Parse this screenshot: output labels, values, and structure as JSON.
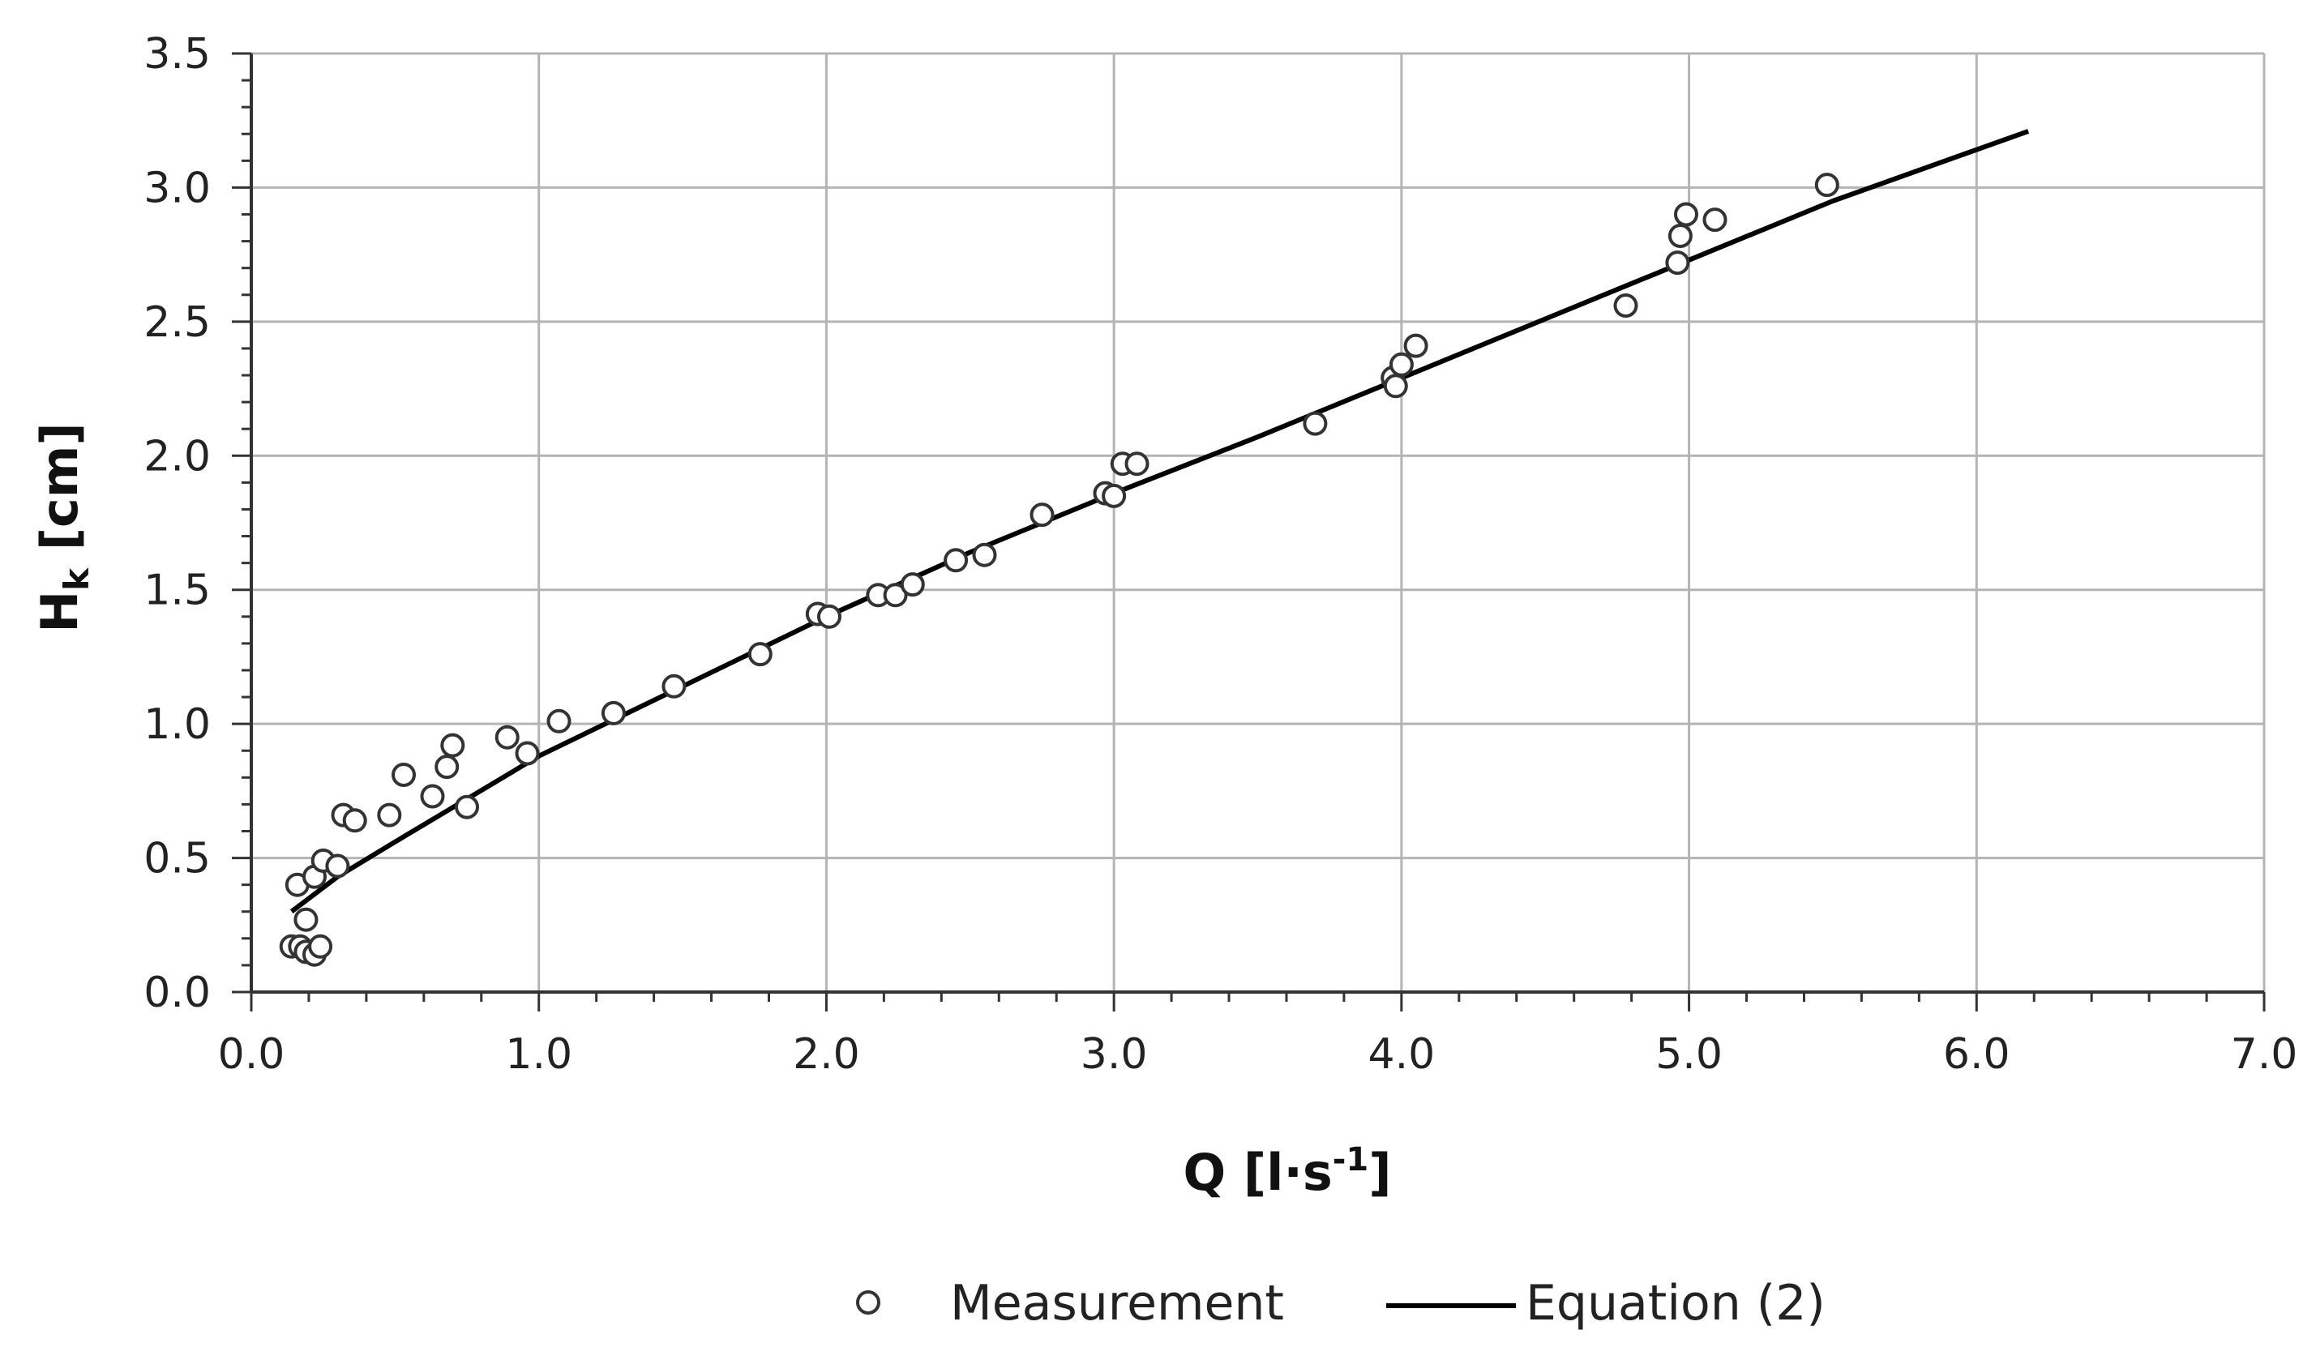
{
  "chart_data": {
    "type": "scatter",
    "xlabel": {
      "main": "Q [l·s",
      "sup": "-1",
      "end": "]"
    },
    "ylabel": {
      "main": "H",
      "sub": "k",
      "end": " [cm]"
    },
    "xlim": [
      0.0,
      7.0
    ],
    "ylim": [
      0.0,
      3.5
    ],
    "x_ticks": [
      "0.0",
      "1.0",
      "2.0",
      "3.0",
      "4.0",
      "5.0",
      "6.0",
      "7.0"
    ],
    "y_ticks": [
      "0.0",
      "0.5",
      "1.0",
      "1.5",
      "2.0",
      "2.5",
      "3.0",
      "3.5"
    ],
    "grid": true,
    "legend_position": "bottom",
    "series": [
      {
        "name": "Measurement",
        "kind": "scatter",
        "marker": "open-circle",
        "points": [
          [
            0.14,
            0.17
          ],
          [
            0.17,
            0.17
          ],
          [
            0.19,
            0.15
          ],
          [
            0.22,
            0.14
          ],
          [
            0.24,
            0.17
          ],
          [
            0.19,
            0.27
          ],
          [
            0.16,
            0.4
          ],
          [
            0.22,
            0.43
          ],
          [
            0.25,
            0.49
          ],
          [
            0.3,
            0.47
          ],
          [
            0.32,
            0.66
          ],
          [
            0.36,
            0.64
          ],
          [
            0.48,
            0.66
          ],
          [
            0.53,
            0.81
          ],
          [
            0.63,
            0.73
          ],
          [
            0.68,
            0.84
          ],
          [
            0.7,
            0.92
          ],
          [
            0.75,
            0.69
          ],
          [
            0.89,
            0.95
          ],
          [
            0.96,
            0.89
          ],
          [
            1.07,
            1.01
          ],
          [
            1.26,
            1.04
          ],
          [
            1.47,
            1.14
          ],
          [
            1.77,
            1.26
          ],
          [
            1.97,
            1.41
          ],
          [
            2.01,
            1.4
          ],
          [
            2.18,
            1.48
          ],
          [
            2.24,
            1.48
          ],
          [
            2.3,
            1.52
          ],
          [
            2.45,
            1.61
          ],
          [
            2.55,
            1.63
          ],
          [
            2.75,
            1.78
          ],
          [
            2.97,
            1.86
          ],
          [
            3.0,
            1.85
          ],
          [
            3.03,
            1.97
          ],
          [
            3.08,
            1.97
          ],
          [
            3.7,
            2.12
          ],
          [
            3.97,
            2.29
          ],
          [
            3.98,
            2.26
          ],
          [
            4.0,
            2.34
          ],
          [
            4.05,
            2.41
          ],
          [
            4.78,
            2.56
          ],
          [
            4.96,
            2.72
          ],
          [
            4.97,
            2.82
          ],
          [
            4.99,
            2.9
          ],
          [
            5.09,
            2.88
          ],
          [
            5.48,
            3.01
          ]
        ]
      },
      {
        "name": "Equation (2)",
        "kind": "line",
        "points": [
          [
            0.14,
            0.3
          ],
          [
            0.3,
            0.43
          ],
          [
            0.5,
            0.56
          ],
          [
            0.75,
            0.72
          ],
          [
            1.0,
            0.88
          ],
          [
            1.5,
            1.14
          ],
          [
            2.0,
            1.4
          ],
          [
            2.5,
            1.64
          ],
          [
            3.0,
            1.86
          ],
          [
            3.5,
            2.07
          ],
          [
            4.0,
            2.29
          ],
          [
            4.5,
            2.51
          ],
          [
            5.0,
            2.73
          ],
          [
            5.5,
            2.95
          ],
          [
            6.18,
            3.21
          ]
        ],
        "color": "#000000"
      }
    ]
  }
}
